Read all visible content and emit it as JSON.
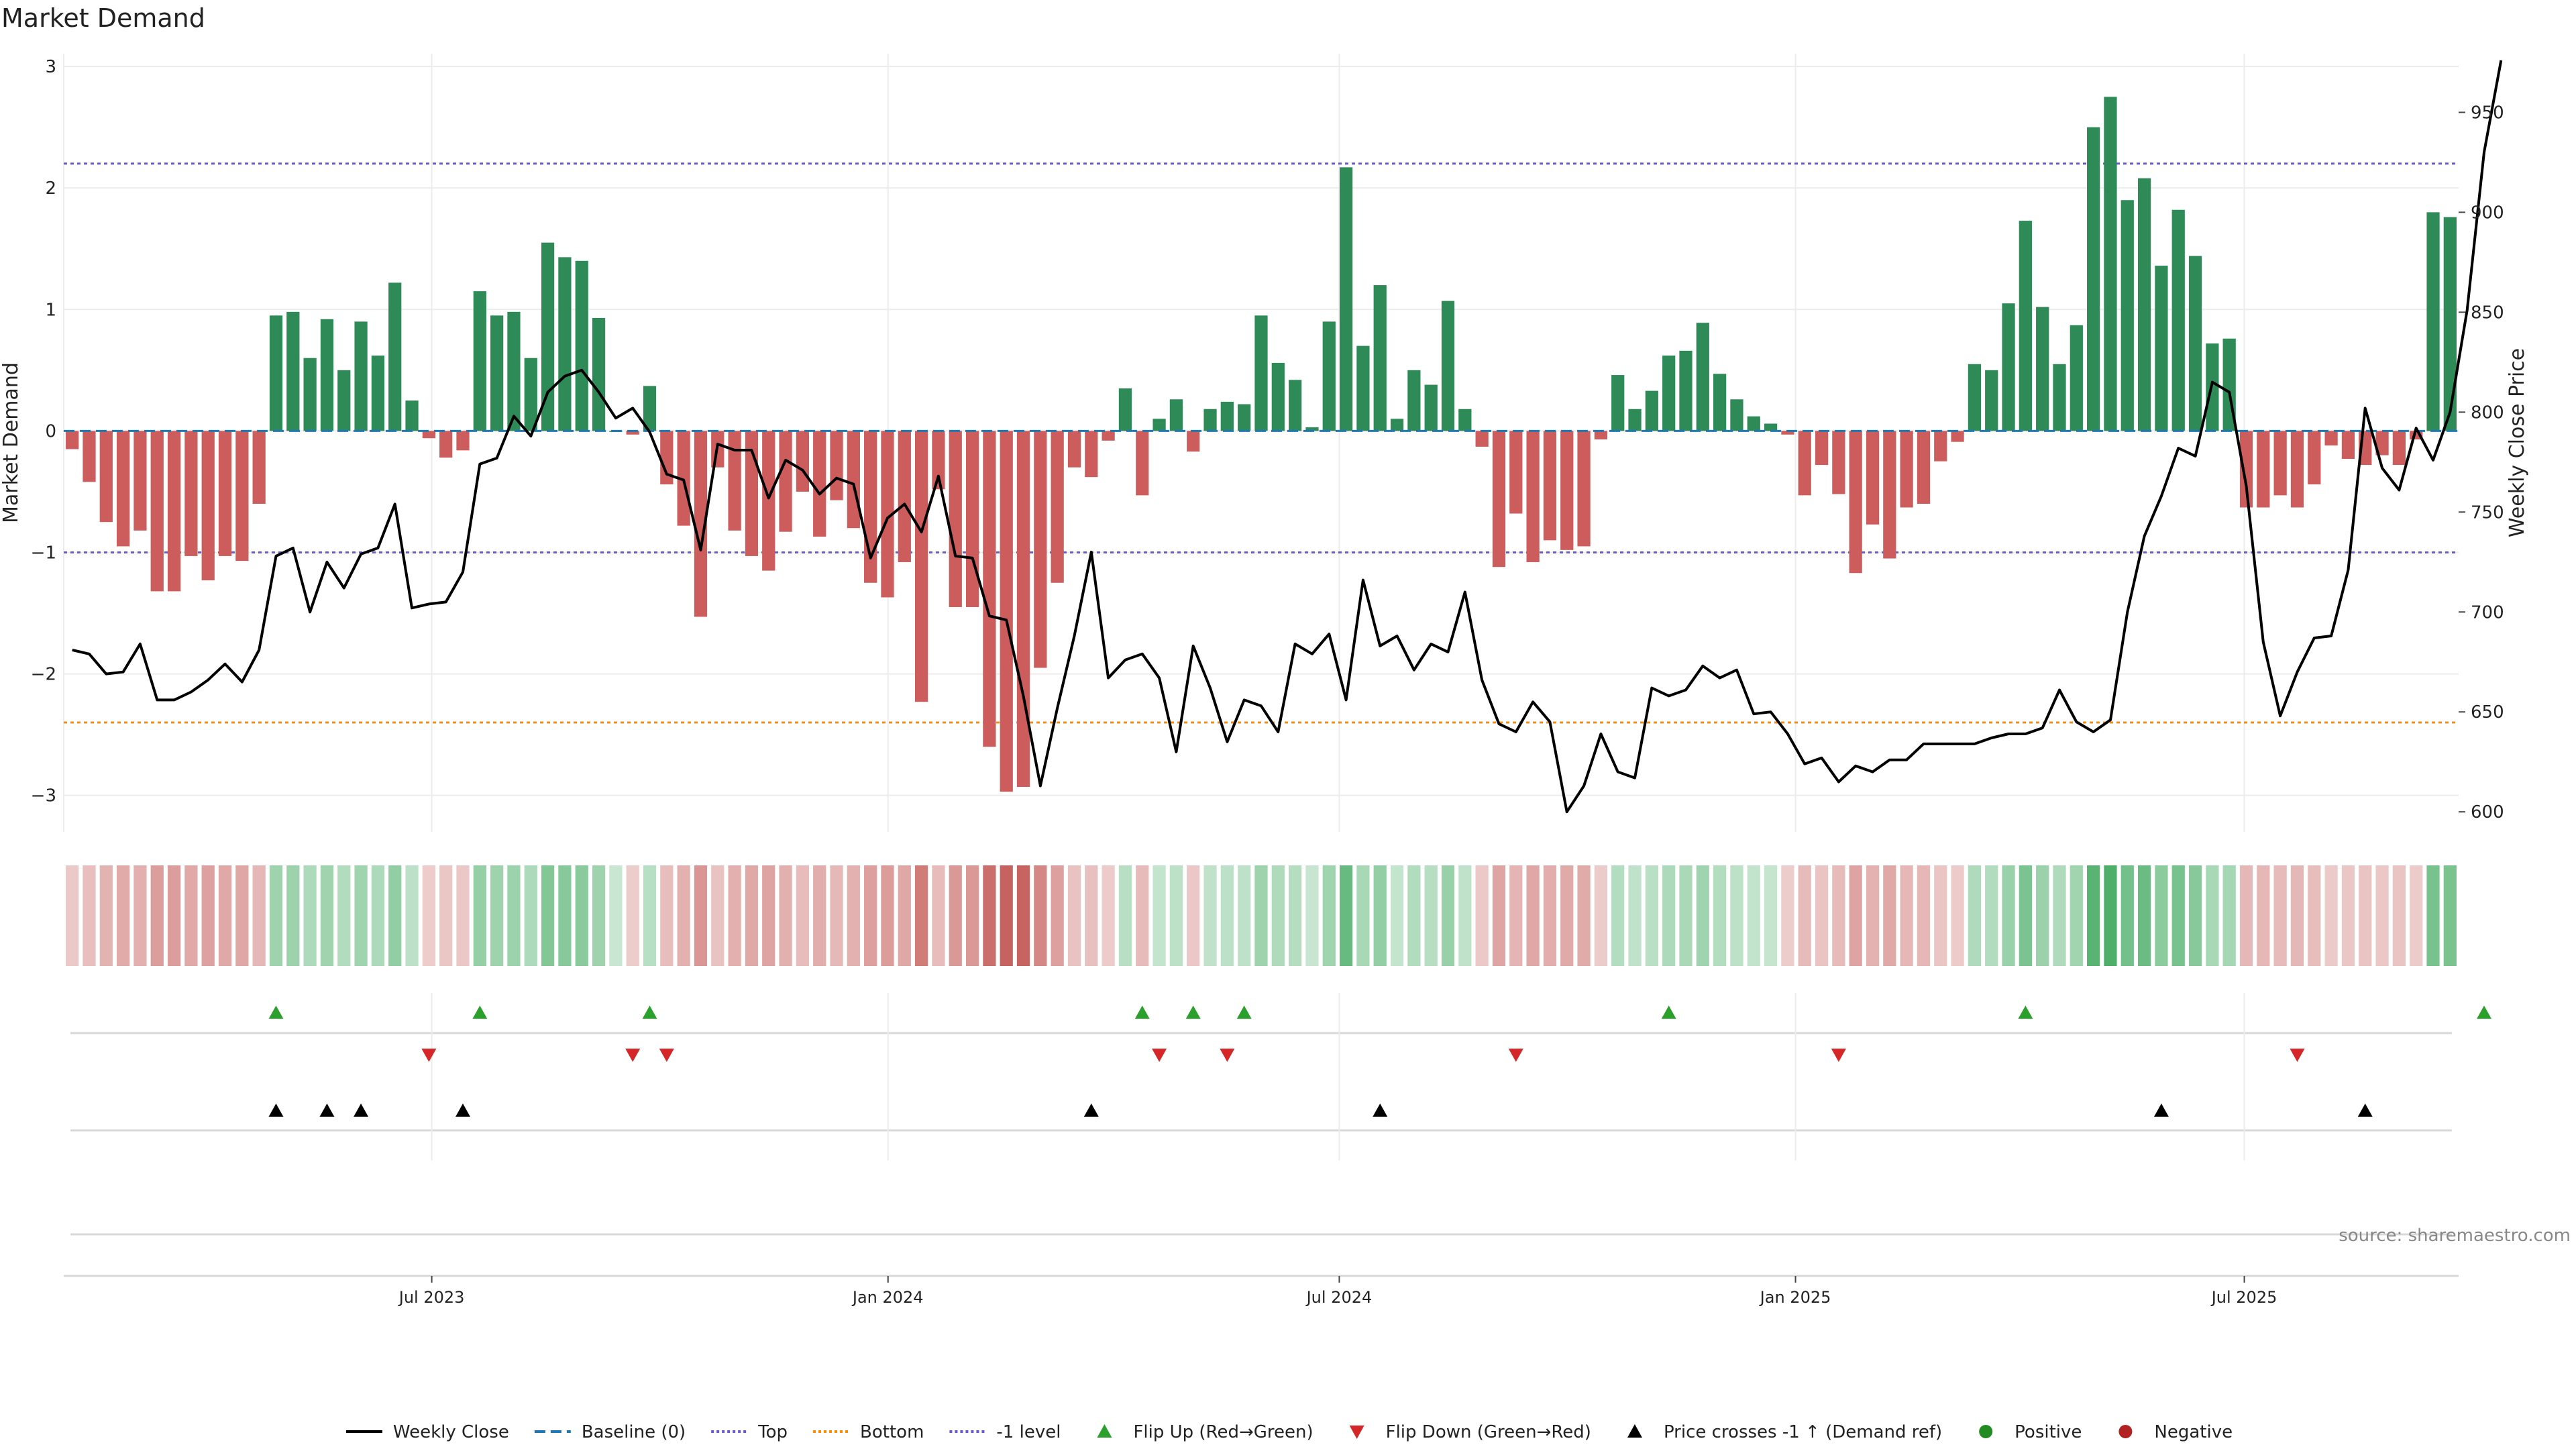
{
  "chart_data": {
    "type": "bar",
    "title": "Market Demand",
    "ylabel": "Market Demand",
    "y2label": "Weekly Close Price",
    "ylim": [
      -3.3,
      3.05
    ],
    "y2lim": [
      590,
      976
    ],
    "yticks": [
      3,
      2,
      1,
      0,
      -1,
      -2,
      -3
    ],
    "yticks_display": [
      "3",
      "2",
      "1",
      "0",
      "−1",
      "−2",
      "−3"
    ],
    "y2ticks": [
      600,
      650,
      700,
      750,
      800,
      850,
      900,
      950
    ],
    "x_start": "2023-02-06",
    "x_end": "2025-09-22",
    "xticks": [
      {
        "label": "Jul 2023",
        "date": "2023-07-01"
      },
      {
        "label": "Jan 2024",
        "date": "2024-01-01"
      },
      {
        "label": "Jul 2024",
        "date": "2024-07-01"
      },
      {
        "label": "Jan 2025",
        "date": "2025-01-01"
      },
      {
        "label": "Jul 2025",
        "date": "2025-07-01"
      }
    ],
    "reference_lines": {
      "top": 2.2,
      "bottom": -2.4,
      "minus_one": -1.0,
      "baseline": 0
    },
    "grid": true,
    "legend_position": "bottom",
    "colors": {
      "positive_bar": "#2e8b57",
      "negative_bar": "#cd5c5c",
      "close_line": "#000000",
      "top_line": "#6a5acd",
      "bottom_line": "#ff8c00",
      "baseline": "#1f77b4",
      "flip_up": "#2ca02c",
      "flip_down": "#d62728",
      "price_cross": "#000000",
      "positive_dot": "#228b22",
      "negative_dot": "#b22222"
    },
    "series": [
      {
        "name": "Market Demand",
        "values": [
          -0.15,
          -0.42,
          -0.75,
          -0.95,
          -0.82,
          -1.32,
          -1.32,
          -1.03,
          -1.23,
          -1.03,
          -1.07,
          -0.6,
          0.95,
          0.98,
          0.6,
          0.92,
          0.5,
          0.9,
          0.62,
          1.22,
          0.25,
          -0.06,
          -0.22,
          -0.16,
          1.15,
          0.95,
          0.98,
          0.6,
          1.55,
          1.43,
          1.4,
          0.93,
          0,
          -0.03,
          0.37,
          -0.44,
          -0.78,
          -1.53,
          -0.3,
          -0.82,
          -1.03,
          -1.15,
          -0.83,
          -0.5,
          -0.87,
          -0.57,
          -0.8,
          -1.25,
          -1.37,
          -1.08,
          -2.23,
          -0.48,
          -1.45,
          -1.45,
          -2.6,
          -2.97,
          -2.93,
          -1.95,
          -1.25,
          -0.3,
          -0.38,
          -0.08,
          0.35,
          -0.53,
          0.1,
          0.26,
          -0.17,
          0.18,
          0.24,
          0.22,
          0.95,
          0.56,
          0.42,
          0.03,
          0.9,
          2.17,
          0.7,
          1.2,
          0.1,
          0.5,
          0.38,
          1.07,
          0.18,
          -0.13,
          -1.12,
          -0.68,
          -1.08,
          -0.9,
          -0.98,
          -0.95,
          -0.07,
          0.46,
          0.18,
          0.33,
          0.62,
          0.66,
          0.89,
          0.47,
          0.26,
          0.12,
          0.06,
          -0.03,
          -0.53,
          -0.28,
          -0.52,
          -1.17,
          -0.77,
          -1.05,
          -0.63,
          -0.6,
          -0.25,
          -0.09,
          0.55,
          0.5,
          1.05,
          1.73,
          1.02,
          0.55,
          0.87,
          2.5,
          2.75,
          1.9,
          2.08,
          1.36,
          1.82,
          1.44,
          0.72,
          0.76,
          -0.63,
          -0.63,
          -0.53,
          -0.63,
          -0.44,
          -0.12,
          -0.23,
          -0.28,
          -0.2,
          -0.28,
          -0.07,
          1.8,
          1.76
        ]
      },
      {
        "name": "Weekly Close",
        "values": [
          681,
          679,
          669,
          670,
          684,
          656,
          656,
          660,
          666,
          674,
          665,
          681,
          728,
          732,
          700,
          725,
          712,
          729,
          732,
          754,
          702,
          704,
          705,
          720,
          774,
          777,
          798,
          788,
          810,
          818,
          821,
          810,
          797,
          802,
          790,
          769,
          766,
          731,
          784,
          781,
          781,
          757,
          776,
          771,
          759,
          767,
          764,
          727,
          747,
          754,
          740,
          768,
          728,
          727,
          698,
          696,
          658,
          613,
          652,
          688,
          730,
          667,
          676,
          679,
          667,
          630,
          683,
          662,
          635,
          656,
          653,
          640,
          684,
          679,
          689,
          656,
          716,
          683,
          688,
          671,
          684,
          680,
          710,
          666,
          644,
          640,
          655,
          645,
          600,
          613,
          639,
          620,
          617,
          662,
          658,
          661,
          673,
          667,
          671,
          649,
          650,
          639,
          624,
          627,
          615,
          623,
          620,
          626,
          626,
          634,
          634,
          634,
          634,
          637,
          639,
          639,
          642,
          661,
          645,
          640,
          646,
          700,
          738,
          758,
          782,
          778,
          815,
          810,
          763,
          685,
          648,
          670,
          687,
          688,
          721,
          802,
          772,
          761,
          792,
          776,
          800,
          851,
          930,
          976
        ]
      },
      {
        "name": "Baseline (0)"
      },
      {
        "name": "Top"
      },
      {
        "name": "Bottom"
      },
      {
        "name": "-1 level"
      },
      {
        "name": "Flip Up (Red→Green)",
        "indices": [
          12,
          24,
          34,
          63,
          66,
          69,
          94,
          115,
          142
        ]
      },
      {
        "name": "Flip Down (Green→Red)",
        "indices": [
          21,
          33,
          35,
          64,
          68,
          85,
          104,
          131
        ]
      },
      {
        "name": "Price crosses -1 ↑ (Demand ref)",
        "indices": [
          12,
          15,
          17,
          23,
          60,
          77,
          123,
          135
        ]
      },
      {
        "name": "Positive"
      },
      {
        "name": "Negative"
      }
    ]
  },
  "legend": [
    {
      "label": "Weekly Close",
      "kind": "line",
      "color": "#000000",
      "dash": ""
    },
    {
      "label": "Baseline (0)",
      "kind": "line",
      "color": "#1f77b4",
      "dash": "16,8"
    },
    {
      "label": "Top",
      "kind": "line",
      "color": "#6a5acd",
      "dash": "4,4"
    },
    {
      "label": "Bottom",
      "kind": "line",
      "color": "#ff8c00",
      "dash": "4,4"
    },
    {
      "label": "-1 level",
      "kind": "line",
      "color": "#6a5acd",
      "dash": "4,4"
    },
    {
      "label": "Flip Up (Red→Green)",
      "kind": "tri-up",
      "color": "#2ca02c"
    },
    {
      "label": "Flip Down (Green→Red)",
      "kind": "tri-down",
      "color": "#d62728"
    },
    {
      "label": "Price crosses -1 ↑ (Demand ref)",
      "kind": "tri-up",
      "color": "#000000"
    },
    {
      "label": "Positive",
      "kind": "dot",
      "color": "#228b22"
    },
    {
      "label": "Negative",
      "kind": "dot",
      "color": "#b22222"
    }
  ],
  "source_text": "source: sharemaestro.com"
}
